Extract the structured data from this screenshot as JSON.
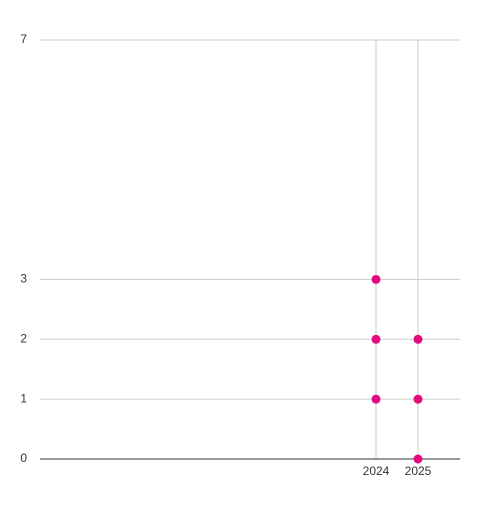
{
  "chart_data": {
    "type": "scatter",
    "x": [
      2024,
      2024,
      2024,
      2025,
      2025,
      2025
    ],
    "values": [
      1,
      2,
      3,
      0,
      1,
      2
    ],
    "color": "#e5097f",
    "xlim": [
      2016,
      2026
    ],
    "xticks": [
      2024,
      2025
    ],
    "ylim": [
      0,
      7
    ],
    "yticks": [
      0,
      1,
      2,
      3,
      7
    ],
    "grid": true
  }
}
